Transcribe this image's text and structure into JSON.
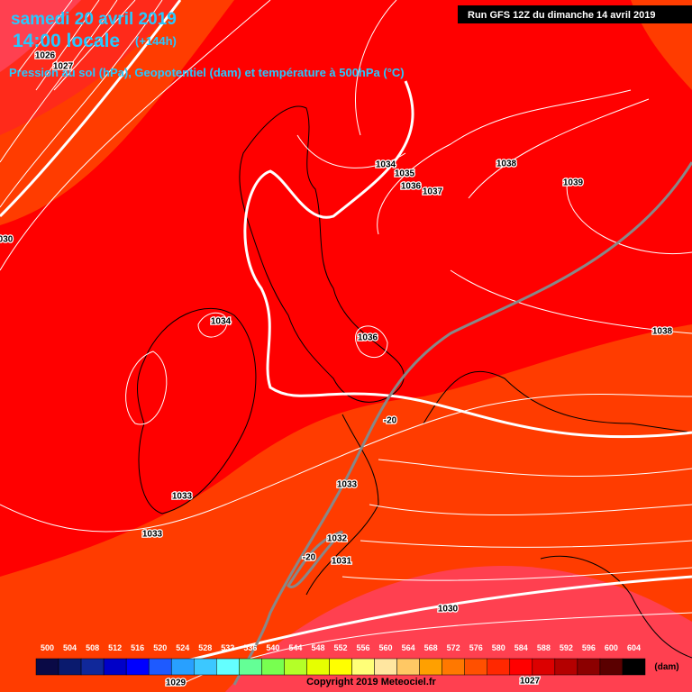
{
  "header": {
    "date": "samedi 20 avril 2019",
    "time": "14:00 locale",
    "lead": "(+144h)",
    "subtitle": "Pression au sol (hPa), Geopotentiel (dam) et température à 500hPa (°C)",
    "run": "Run GFS 12Z du dimanche 14 avril 2019"
  },
  "map": {
    "isobar_labels": [
      "1026",
      "1027",
      "030",
      "1034",
      "1035",
      "1036",
      "1037",
      "1038",
      "1039",
      "1038",
      "1034",
      "1036",
      "1033",
      "1033",
      "1033",
      "1032",
      "1031",
      "1030",
      "1029",
      "1027"
    ],
    "temperature_labels": [
      "-20",
      "-20"
    ]
  },
  "legend": {
    "values": [
      500,
      504,
      508,
      512,
      516,
      520,
      524,
      528,
      532,
      536,
      540,
      544,
      548,
      552,
      556,
      560,
      564,
      568,
      572,
      576,
      580,
      584,
      588,
      592,
      596,
      600,
      604
    ],
    "colors": [
      "#0a0a46",
      "#0a1a6e",
      "#10289a",
      "#0000c8",
      "#0000ff",
      "#1e5aff",
      "#28a0ff",
      "#3cc8ff",
      "#64ffff",
      "#64ff96",
      "#78ff50",
      "#b4ff28",
      "#e6ff00",
      "#ffff00",
      "#ffff78",
      "#ffe6a0",
      "#ffc864",
      "#ffa000",
      "#ff7800",
      "#ff5000",
      "#ff2800",
      "#ff0000",
      "#dc0000",
      "#b40000",
      "#8c0000",
      "#5a0000",
      "#000000"
    ],
    "unit": "(dam)"
  },
  "footer": {
    "copyright": "Copyright 2019 Meteociel.fr"
  }
}
